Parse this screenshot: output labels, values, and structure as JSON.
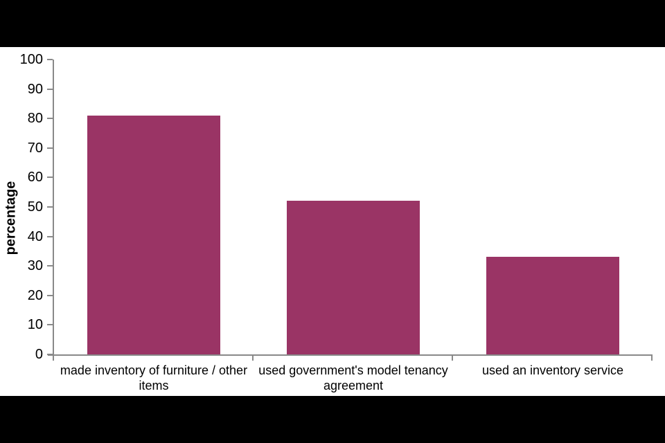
{
  "chart_data": {
    "type": "bar",
    "categories": [
      "made inventory of furniture / other items",
      "used government's model tenancy agreement",
      "used an inventory service"
    ],
    "values": [
      81,
      52,
      33
    ],
    "title": "",
    "xlabel": "",
    "ylabel": "percentage",
    "ylim": [
      0,
      100
    ],
    "ytick_step": 10,
    "grid": false,
    "legend": null,
    "bar_color": "#9A3465",
    "axis_color": "#898989",
    "text_color": "#000000",
    "canvas_background": "#FFFFFF",
    "frame_background": "#000000",
    "bar_width_fraction": 0.67
  }
}
